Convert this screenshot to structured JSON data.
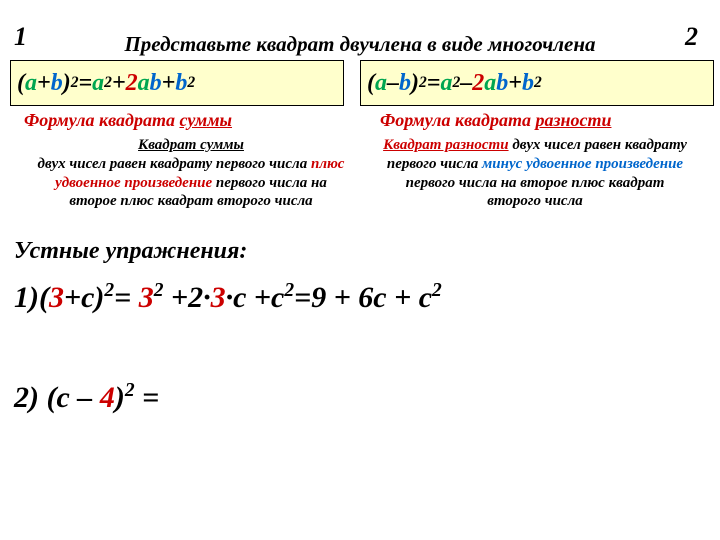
{
  "numLeft": "1",
  "numRight": "2",
  "title": "Представьте квадрат двучлена в виде многочлена",
  "formulaLeft": {
    "p1": "(",
    "a1": "a",
    "p2": "+",
    "b1": "b",
    "p3": ")",
    "sq1": "2",
    "eq": "=",
    "a2": "a",
    "sq2": "2",
    "plus1": "+",
    "two": "2",
    "a3": "a",
    "b2": "b",
    "plus2": "+",
    "b3": "b",
    "sq3": "2"
  },
  "formulaRight": {
    "p1": "(",
    "a1": "a",
    "m": " – ",
    "b1": "b",
    "p3": ")",
    "sq1": "2",
    "eq": "=",
    "a2": "a",
    "sq2": "2",
    "minus": "– ",
    "two": "2",
    "a3": "a",
    "b2": "b",
    "plus2": "+",
    "b3": "b",
    "sq3": "2"
  },
  "fnameL": {
    "t1": "Формула квадрата  ",
    "u": "суммы"
  },
  "fnameR": {
    "t1": "Формула квадрата ",
    "u": "разности"
  },
  "descL": {
    "hd": "Квадрат  суммы ",
    "l1": "двух чисел равен  квадрату первого числа ",
    "plus1": "плюс удвоенное произведение",
    "l2": " первого числа на второе  плюс квадрат второго числа"
  },
  "descR": {
    "hd": "Квадрат  разности",
    "l1": " двух чисел равен  квадрату первого числа ",
    "minus": "минус  удвоенное произведение",
    "l2": " первого числа на второе  плюс квадрат второго числа"
  },
  "oral": "Устные упражнения:",
  "ex1": {
    "n": "1)(",
    "r1": "3",
    "t1": "+c)",
    "s1": "2",
    "t2": "= ",
    "r2": "3",
    "s2": "2",
    "t3": " +2·",
    "r3": "3",
    "t4": "·c +c",
    "s3": "2",
    "t5": "=9 + 6c + c",
    "s4": "2"
  },
  "ex2": {
    "n": "2) ",
    "t1": "(c – ",
    "r1": "4",
    "t2": ")",
    "s1": "2",
    "t3": " ="
  },
  "colors": {
    "bgBox": "#ffffcc",
    "green": "#00a650",
    "blue": "#0066cc",
    "red": "#cc0000",
    "black": "#000000"
  }
}
